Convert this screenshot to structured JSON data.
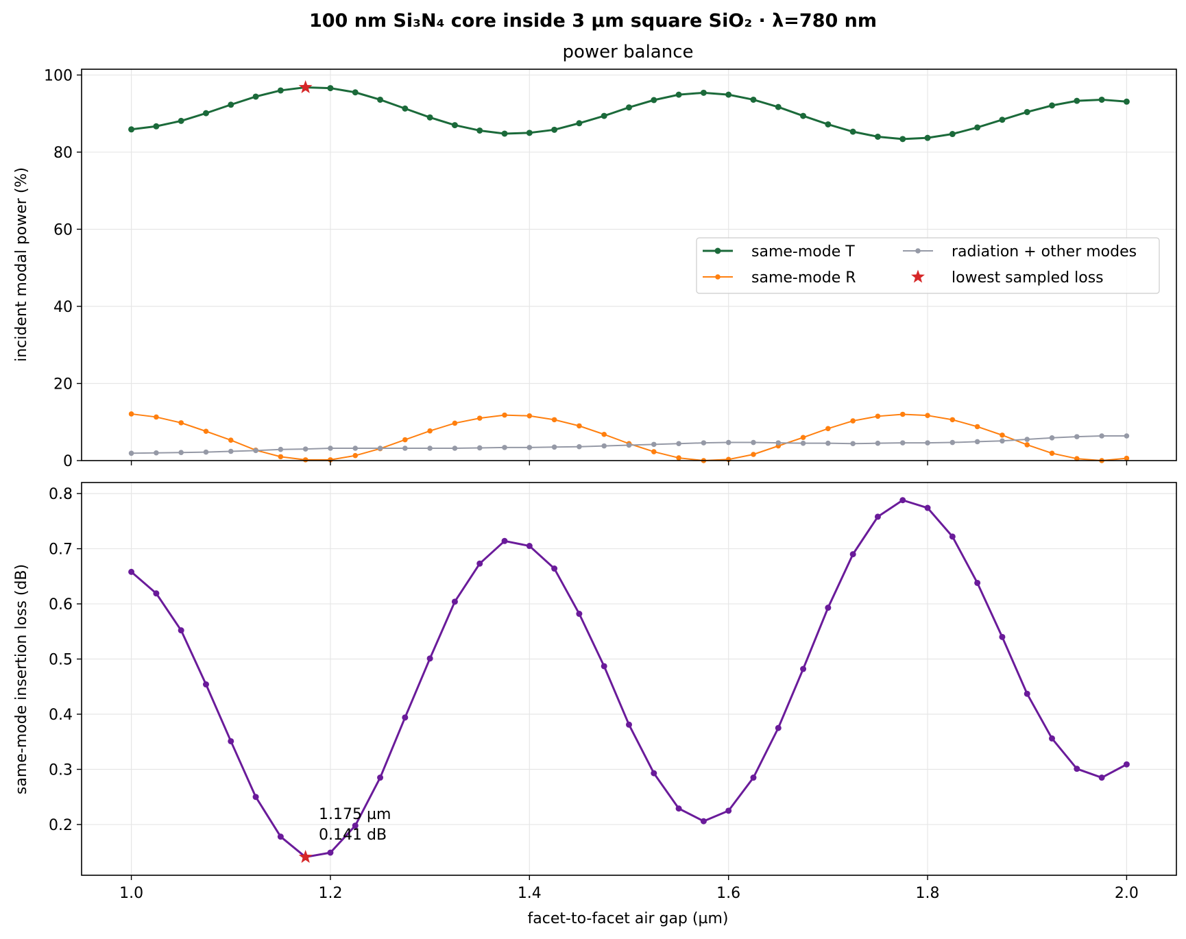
{
  "figure": {
    "suptitle": "100 nm Si₃N₄ core inside 3 µm square SiO₂ · λ=780 nm"
  },
  "chart_data": [
    {
      "type": "line",
      "title": "power balance",
      "xlabel": "",
      "ylabel": "incident modal power (%)",
      "xlim": [
        0.95,
        2.05
      ],
      "ylim": [
        0,
        101.5
      ],
      "xticks": [
        1.0,
        1.2,
        1.4,
        1.6,
        1.8,
        2.0
      ],
      "yticks": [
        0,
        20,
        40,
        60,
        80,
        100
      ],
      "ytick_labels": [
        "0",
        "20",
        "40",
        "60",
        "80",
        "100"
      ],
      "grid": true,
      "legend_position": "center-right",
      "x": [
        1.0,
        1.025,
        1.05,
        1.075,
        1.1,
        1.125,
        1.15,
        1.175,
        1.2,
        1.225,
        1.25,
        1.275,
        1.3,
        1.325,
        1.35,
        1.375,
        1.4,
        1.425,
        1.45,
        1.475,
        1.5,
        1.525,
        1.55,
        1.575,
        1.6,
        1.625,
        1.65,
        1.675,
        1.7,
        1.725,
        1.75,
        1.775,
        1.8,
        1.825,
        1.85,
        1.875,
        1.9,
        1.925,
        1.95,
        1.975,
        2.0
      ],
      "series": [
        {
          "name": "same-mode T",
          "color": "#1b6a3a",
          "values": [
            85.9,
            86.7,
            88.1,
            90.1,
            92.3,
            94.4,
            96.0,
            96.8,
            96.6,
            95.5,
            93.6,
            91.3,
            89.0,
            87.0,
            85.6,
            84.8,
            85.0,
            85.8,
            87.5,
            89.4,
            91.6,
            93.5,
            94.9,
            95.4,
            94.9,
            93.6,
            91.7,
            89.4,
            87.2,
            85.3,
            84.0,
            83.4,
            83.7,
            84.7,
            86.4,
            88.4,
            90.4,
            92.1,
            93.3,
            93.6,
            93.1
          ]
        },
        {
          "name": "same-mode R",
          "color": "#ff7f0e",
          "values": [
            12.1,
            11.3,
            9.8,
            7.6,
            5.3,
            2.7,
            1.0,
            0.2,
            0.2,
            1.3,
            3.1,
            5.4,
            7.7,
            9.7,
            11.0,
            11.8,
            11.6,
            10.6,
            9.0,
            6.8,
            4.4,
            2.3,
            0.7,
            0.0,
            0.3,
            1.6,
            3.8,
            6.0,
            8.3,
            10.3,
            11.5,
            12.0,
            11.7,
            10.6,
            8.8,
            6.6,
            4.1,
            1.9,
            0.5,
            0.0,
            0.6
          ]
        },
        {
          "name": "radiation + other modes",
          "color": "#9599a6",
          "values": [
            1.9,
            2.0,
            2.1,
            2.2,
            2.4,
            2.6,
            2.9,
            3.0,
            3.2,
            3.2,
            3.2,
            3.2,
            3.2,
            3.2,
            3.3,
            3.4,
            3.4,
            3.5,
            3.6,
            3.8,
            4.0,
            4.2,
            4.4,
            4.6,
            4.7,
            4.7,
            4.6,
            4.5,
            4.5,
            4.4,
            4.5,
            4.6,
            4.6,
            4.7,
            4.9,
            5.1,
            5.5,
            5.9,
            6.2,
            6.4,
            6.4
          ]
        }
      ],
      "marker_legend": "lowest sampled loss",
      "marker_point": {
        "x": 1.175,
        "y": 96.8,
        "color": "#d62728"
      }
    },
    {
      "type": "line",
      "title": "",
      "xlabel": "facet-to-facet air gap (µm)",
      "ylabel": "same-mode insertion loss (dB)",
      "xlim": [
        0.95,
        2.05
      ],
      "ylim": [
        0.108,
        0.82
      ],
      "xticks": [
        1.0,
        1.2,
        1.4,
        1.6,
        1.8,
        2.0
      ],
      "xtick_labels": [
        "1.0",
        "1.2",
        "1.4",
        "1.6",
        "1.8",
        "2.0"
      ],
      "yticks": [
        0.2,
        0.3,
        0.4,
        0.5,
        0.6,
        0.7,
        0.8
      ],
      "ytick_labels": [
        "0.2",
        "0.3",
        "0.4",
        "0.5",
        "0.6",
        "0.7",
        "0.8"
      ],
      "grid": true,
      "x": [
        1.0,
        1.025,
        1.05,
        1.075,
        1.1,
        1.125,
        1.15,
        1.175,
        1.2,
        1.225,
        1.25,
        1.275,
        1.3,
        1.325,
        1.35,
        1.375,
        1.4,
        1.425,
        1.45,
        1.475,
        1.5,
        1.525,
        1.55,
        1.575,
        1.6,
        1.625,
        1.65,
        1.675,
        1.7,
        1.725,
        1.75,
        1.775,
        1.8,
        1.825,
        1.85,
        1.875,
        1.9,
        1.925,
        1.95,
        1.975,
        2.0
      ],
      "series": [
        {
          "color": "#6a1b9a",
          "values": [
            0.658,
            0.619,
            0.552,
            0.454,
            0.351,
            0.25,
            0.178,
            0.141,
            0.149,
            0.198,
            0.285,
            0.394,
            0.501,
            0.604,
            0.673,
            0.714,
            0.705,
            0.664,
            0.582,
            0.487,
            0.381,
            0.293,
            0.229,
            0.206,
            0.225,
            0.285,
            0.375,
            0.482,
            0.593,
            0.69,
            0.758,
            0.788,
            0.774,
            0.722,
            0.638,
            0.54,
            0.437,
            0.356,
            0.301,
            0.285,
            0.309
          ]
        }
      ],
      "marker_point": {
        "x": 1.175,
        "y": 0.141,
        "color": "#d62728"
      },
      "annotation_lines": [
        "1.175 µm",
        "0.141 dB"
      ]
    }
  ]
}
